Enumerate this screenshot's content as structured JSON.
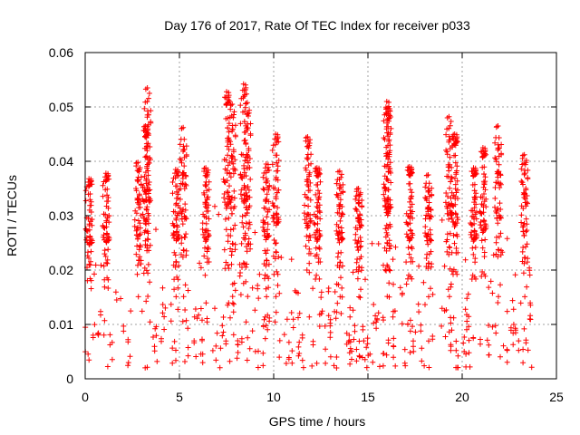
{
  "chart_data": {
    "type": "scatter",
    "title": "Day 176 of 2017, Rate Of TEC Index for receiver p033",
    "xlabel": "GPS time / hours",
    "ylabel": "ROTI / TECUs",
    "xlim": [
      0,
      25
    ],
    "ylim": [
      0,
      0.06
    ],
    "x_ticks": [
      "0",
      "5",
      "10",
      "15",
      "20",
      "25"
    ],
    "y_ticks": [
      "0",
      "0.01",
      "0.02",
      "0.03",
      "0.04",
      "0.05",
      "0.06"
    ],
    "grid": true,
    "marker": "plus",
    "color": "#ff0000",
    "x_extent": [
      0,
      23.7
    ],
    "peaks": [
      {
        "x": 3.3,
        "y": 0.0535
      },
      {
        "x": 3.2,
        "y": 0.0465
      },
      {
        "x": 5.2,
        "y": 0.0462
      },
      {
        "x": 7.5,
        "y": 0.0528
      },
      {
        "x": 7.8,
        "y": 0.0505
      },
      {
        "x": 8.4,
        "y": 0.0542
      },
      {
        "x": 8.6,
        "y": 0.0508
      },
      {
        "x": 10.1,
        "y": 0.045
      },
      {
        "x": 11.8,
        "y": 0.0445
      },
      {
        "x": 16.0,
        "y": 0.051
      },
      {
        "x": 16.05,
        "y": 0.0498
      },
      {
        "x": 19.3,
        "y": 0.0482
      },
      {
        "x": 19.6,
        "y": 0.045
      },
      {
        "x": 21.9,
        "y": 0.0465
      },
      {
        "x": 21.1,
        "y": 0.0425
      },
      {
        "x": 23.3,
        "y": 0.0412
      },
      {
        "x": 1.1,
        "y": 0.0378
      },
      {
        "x": 2.8,
        "y": 0.0398
      },
      {
        "x": 4.8,
        "y": 0.0385
      },
      {
        "x": 6.4,
        "y": 0.0388
      },
      {
        "x": 9.6,
        "y": 0.0395
      },
      {
        "x": 12.3,
        "y": 0.0388
      },
      {
        "x": 13.5,
        "y": 0.0382
      },
      {
        "x": 17.2,
        "y": 0.039
      },
      {
        "x": 18.2,
        "y": 0.0375
      },
      {
        "x": 20.6,
        "y": 0.0388
      },
      {
        "x": 14.5,
        "y": 0.035
      },
      {
        "x": 0.2,
        "y": 0.0368
      }
    ],
    "envelope": [
      {
        "x": 0.0,
        "upper": 0.027,
        "lower": 0.002
      },
      {
        "x": 1.0,
        "upper": 0.03,
        "lower": 0.002
      },
      {
        "x": 2.0,
        "upper": 0.028,
        "lower": 0.002
      },
      {
        "x": 3.0,
        "upper": 0.035,
        "lower": 0.002
      },
      {
        "x": 4.0,
        "upper": 0.03,
        "lower": 0.002
      },
      {
        "x": 5.0,
        "upper": 0.032,
        "lower": 0.003
      },
      {
        "x": 6.0,
        "upper": 0.03,
        "lower": 0.003
      },
      {
        "x": 7.0,
        "upper": 0.034,
        "lower": 0.002
      },
      {
        "x": 8.0,
        "upper": 0.036,
        "lower": 0.002
      },
      {
        "x": 9.0,
        "upper": 0.031,
        "lower": 0.002
      },
      {
        "x": 10.0,
        "upper": 0.032,
        "lower": 0.002
      },
      {
        "x": 11.0,
        "upper": 0.03,
        "lower": 0.002
      },
      {
        "x": 12.0,
        "upper": 0.033,
        "lower": 0.002
      },
      {
        "x": 13.0,
        "upper": 0.029,
        "lower": 0.002
      },
      {
        "x": 14.0,
        "upper": 0.027,
        "lower": 0.002
      },
      {
        "x": 15.0,
        "upper": 0.027,
        "lower": 0.002
      },
      {
        "x": 16.0,
        "upper": 0.033,
        "lower": 0.002
      },
      {
        "x": 17.0,
        "upper": 0.029,
        "lower": 0.002
      },
      {
        "x": 18.0,
        "upper": 0.028,
        "lower": 0.002
      },
      {
        "x": 19.0,
        "upper": 0.033,
        "lower": 0.002
      },
      {
        "x": 20.0,
        "upper": 0.028,
        "lower": 0.002
      },
      {
        "x": 21.0,
        "upper": 0.031,
        "lower": 0.002
      },
      {
        "x": 22.0,
        "upper": 0.033,
        "lower": 0.002
      },
      {
        "x": 23.0,
        "upper": 0.03,
        "lower": 0.002
      },
      {
        "x": 23.7,
        "upper": 0.028,
        "lower": 0.002
      }
    ]
  }
}
